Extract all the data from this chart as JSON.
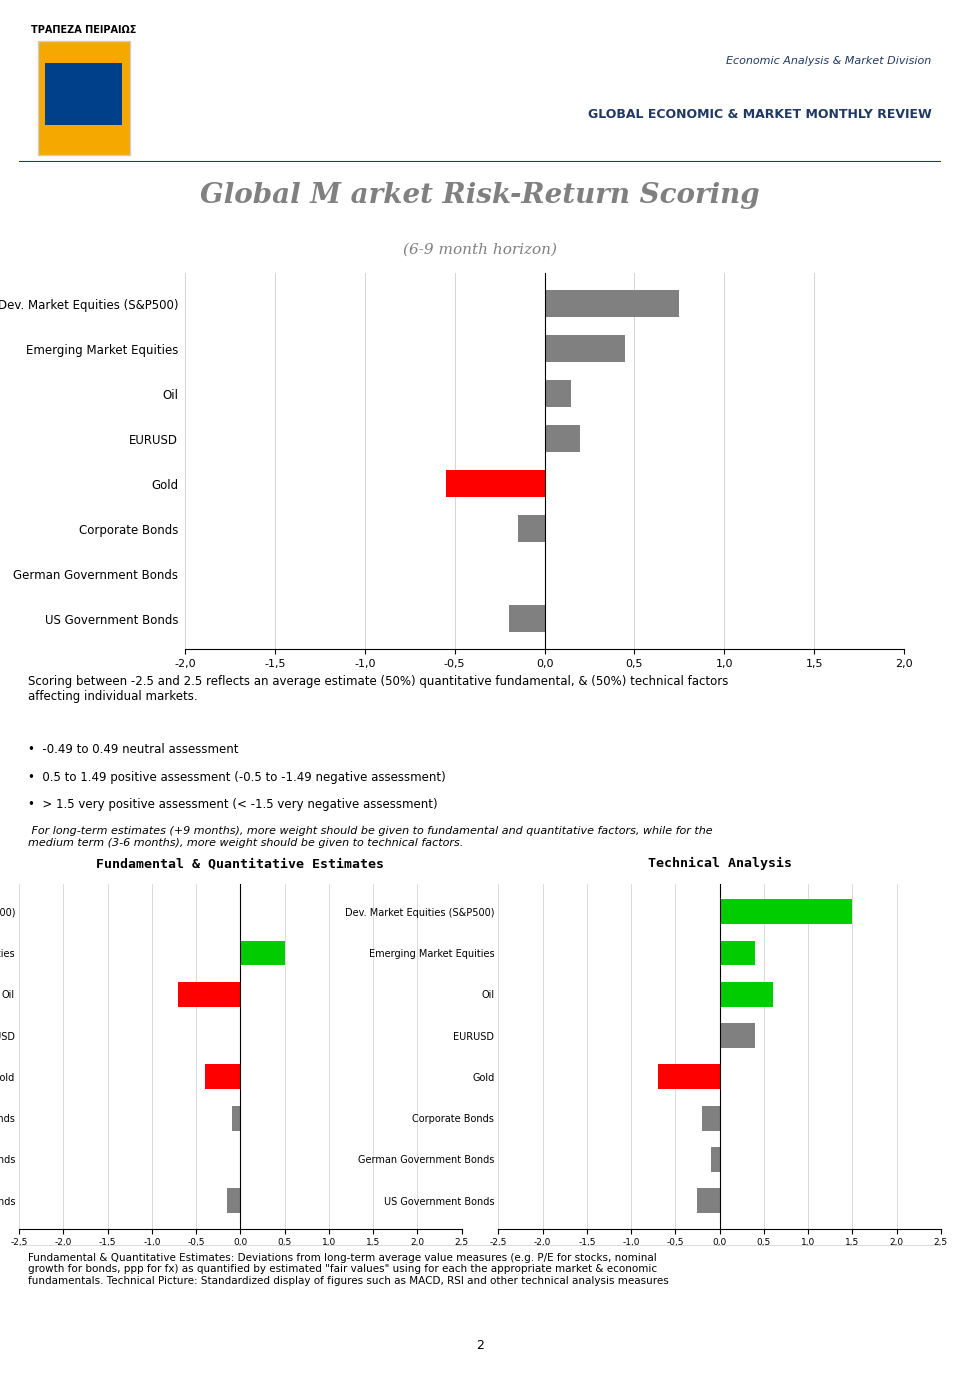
{
  "title_main": "Global M arket Risk-Return Scoring",
  "subtitle_main": "(6-9 month horizon)",
  "header_line1": "Economic Analysis & Market Division",
  "header_line2": "GLOBAL ECONOMIC & MARKET MONTHLY REVIEW",
  "bank_name": "ΤΡΑΠΕΖΑ ΠΕΙΡΑΙΩΣ",
  "categories": [
    "Dev. Market Equities (S&P500)",
    "Emerging Market Equities",
    "Oil",
    "EURUSD",
    "Gold",
    "Corporate Bonds",
    "German Government Bonds",
    "US Government Bonds"
  ],
  "main_values": [
    0.75,
    0.45,
    0.15,
    0.2,
    -0.55,
    -0.15,
    0.0,
    -0.2
  ],
  "main_colors": [
    "#808080",
    "#808080",
    "#808080",
    "#808080",
    "#ff0000",
    "#808080",
    "#808080",
    "#808080"
  ],
  "main_xlim": [
    -2.0,
    2.0
  ],
  "main_xticks": [
    -2.0,
    -1.5,
    -1.0,
    -0.5,
    0.0,
    0.5,
    1.0,
    1.5,
    2.0
  ],
  "fund_values": [
    0.0,
    0.5,
    -0.7,
    0.0,
    -0.4,
    -0.1,
    0.0,
    -0.15
  ],
  "fund_colors": [
    "#808080",
    "#00cc00",
    "#ff0000",
    "#808080",
    "#ff0000",
    "#808080",
    "#808080",
    "#808080"
  ],
  "tech_values": [
    1.5,
    0.4,
    0.6,
    0.4,
    -0.7,
    -0.2,
    -0.1,
    -0.25
  ],
  "tech_colors": [
    "#00cc00",
    "#00cc00",
    "#00cc00",
    "#808080",
    "#ff0000",
    "#808080",
    "#808080",
    "#808080"
  ],
  "sub_xlim": [
    -2.5,
    2.5
  ],
  "sub_xticks": [
    -2.5,
    -2.0,
    -1.5,
    -1.0,
    -0.5,
    0.0,
    0.5,
    1.0,
    1.5,
    2.0,
    2.5
  ],
  "desc_text1": "Scoring between -2.5 and 2.5 reflects an average estimate (50%) quantitative fundamental, & (50%) technical factors\naffecting individual markets.",
  "desc_bullet1": "•  -0.49 to 0.49 neutral assessment",
  "desc_bullet2": "•  0.5 to 1.49 positive assessment (-0.5 to -1.49 negative assessment)",
  "desc_bullet3": "•  > 1.5 very positive assessment (< -1.5 very negative assessment)",
  "desc_italic": " For long-term estimates (+9 months), more weight should be given to fundamental and quantitative factors, while for the\nmedium term (3-6 months), more weight should be given to technical factors.",
  "footer_text": "Fundamental & Quantitative Estimates: Deviations from long-term average value measures (e.g. P/E for stocks, nominal\ngrowth for bonds, ppp for fx) as quantified by estimated \"fair values\" using for each the appropriate market & economic\nfundamentals. Technical Picture: Standardized display of figures such as MACD, RSI and other technical analysis measures",
  "fund_title": "Fundamental & Quantitative Estimates",
  "tech_title": "Technical Analysis",
  "page_num": "2"
}
